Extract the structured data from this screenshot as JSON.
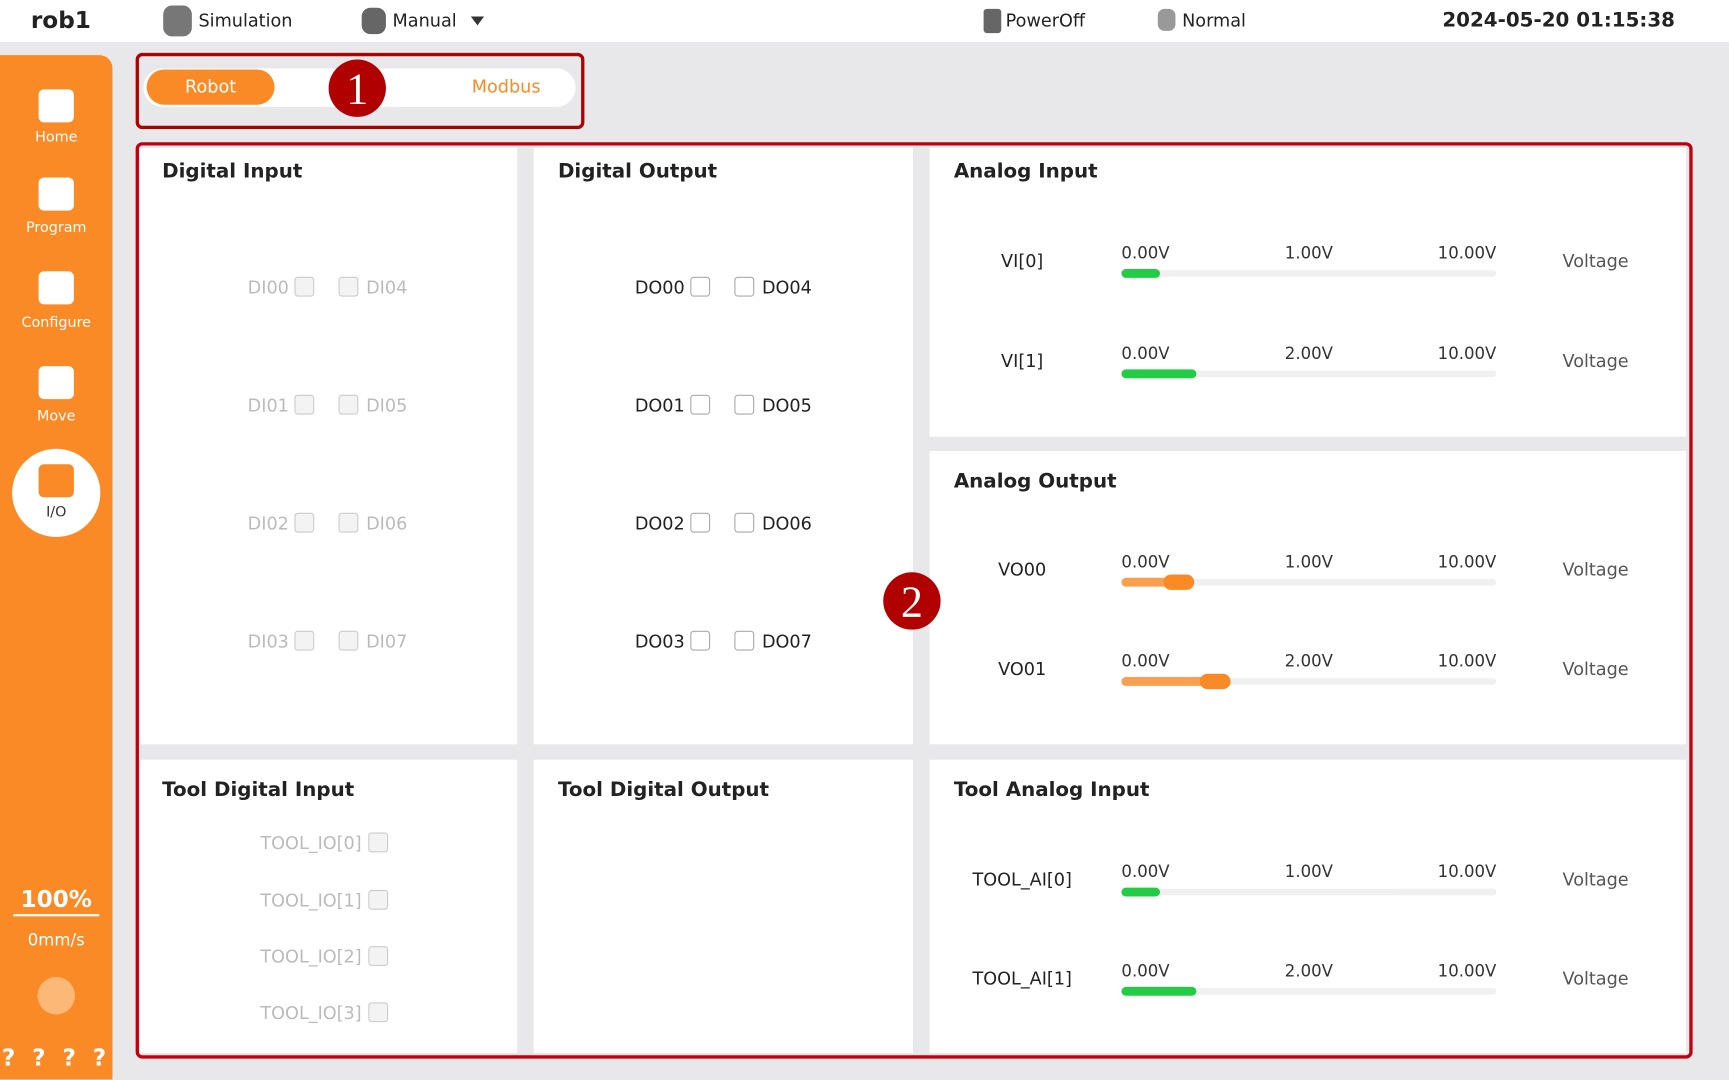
{
  "header": {
    "robot": "rob1",
    "mode": "Simulation",
    "control": "Manual",
    "power": "PowerOff",
    "status": "Normal",
    "datetime": "2024-05-20 01:15:38"
  },
  "sidebar": {
    "items": [
      "Home",
      "Program",
      "Configure",
      "Move",
      "I/O"
    ],
    "speed_percent": "100%",
    "speed": "0mm/s",
    "help": "? ? ? ?"
  },
  "tabs": [
    "Robot",
    "Modbus"
  ],
  "markers": [
    "1",
    "2"
  ],
  "panels": {
    "digital_input": {
      "title": "Digital Input",
      "left": [
        "DI00",
        "DI01",
        "DI02",
        "DI03"
      ],
      "right": [
        "DI04",
        "DI05",
        "DI06",
        "DI07"
      ]
    },
    "digital_output": {
      "title": "Digital Output",
      "left": [
        "DO00",
        "DO01",
        "DO02",
        "DO03"
      ],
      "right": [
        "DO04",
        "DO05",
        "DO06",
        "DO07"
      ]
    },
    "analog_input": {
      "title": "Analog Input",
      "rows": [
        {
          "label": "VI[0]",
          "min": "0.00V",
          "mid": "1.00V",
          "max": "10.00V",
          "unit": "Voltage"
        },
        {
          "label": "VI[1]",
          "min": "0.00V",
          "mid": "2.00V",
          "max": "10.00V",
          "unit": "Voltage"
        }
      ]
    },
    "analog_output": {
      "title": "Analog Output",
      "rows": [
        {
          "label": "VO00",
          "min": "0.00V",
          "mid": "1.00V",
          "max": "10.00V",
          "unit": "Voltage"
        },
        {
          "label": "VO01",
          "min": "0.00V",
          "mid": "2.00V",
          "max": "10.00V",
          "unit": "Voltage"
        }
      ]
    },
    "tool_digital_input": {
      "title": "Tool Digital Input",
      "items": [
        "TOOL_IO[0]",
        "TOOL_IO[1]",
        "TOOL_IO[2]",
        "TOOL_IO[3]"
      ]
    },
    "tool_digital_output": {
      "title": "Tool Digital Output"
    },
    "tool_analog_input": {
      "title": "Tool Analog Input",
      "rows": [
        {
          "label": "TOOL_AI[0]",
          "min": "0.00V",
          "mid": "1.00V",
          "max": "10.00V",
          "unit": "Voltage"
        },
        {
          "label": "TOOL_AI[1]",
          "min": "0.00V",
          "mid": "2.00V",
          "max": "10.00V",
          "unit": "Voltage"
        }
      ]
    }
  }
}
